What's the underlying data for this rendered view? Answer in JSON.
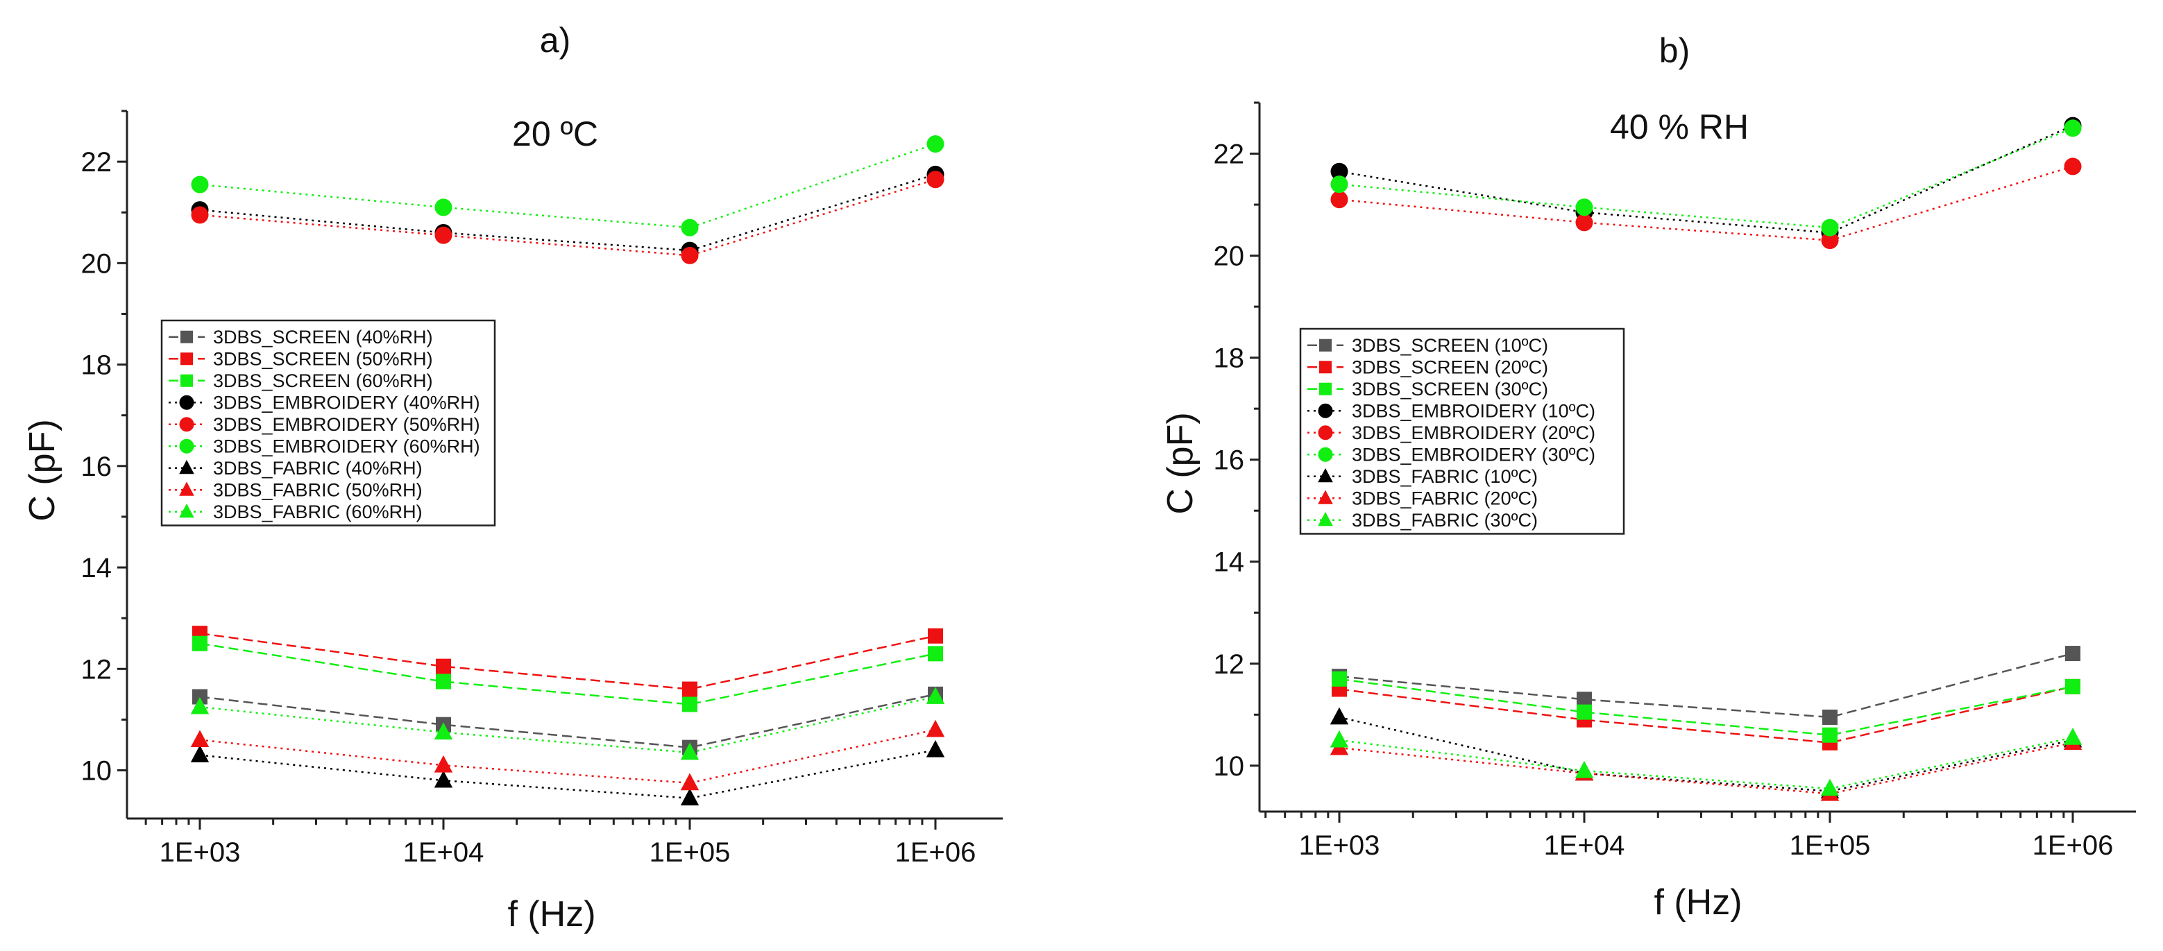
{
  "chart_data": [
    {
      "type": "line",
      "panel_label": "a)",
      "condition": "20 ºC",
      "xlabel": "f (Hz)",
      "ylabel": "C (pF)",
      "x": [
        1000,
        10000,
        100000,
        1000000
      ],
      "x_tick_labels": [
        "1E+03",
        "1E+04",
        "1E+05",
        "1E+06"
      ],
      "x_scale": "log",
      "ylim": [
        9.05,
        23.0
      ],
      "y_ticks": [
        10,
        12,
        14,
        16,
        18,
        20,
        22
      ],
      "legend_position": "center-left",
      "series": [
        {
          "name": "3DBS_SCREEN (40%RH)",
          "color": "#555555",
          "marker": "square",
          "dash": "dash",
          "values": [
            11.45,
            10.9,
            10.45,
            11.5
          ]
        },
        {
          "name": "3DBS_SCREEN (50%RH)",
          "color": "#ee1111",
          "marker": "square",
          "dash": "dash",
          "values": [
            12.7,
            12.05,
            11.6,
            12.65
          ]
        },
        {
          "name": "3DBS_SCREEN (60%RH)",
          "color": "#11ee11",
          "marker": "square",
          "dash": "dash",
          "values": [
            12.5,
            11.75,
            11.3,
            12.3
          ]
        },
        {
          "name": "3DBS_EMBROIDERY (40%RH)",
          "color": "#000000",
          "marker": "circle",
          "dash": "dot",
          "values": [
            21.05,
            20.6,
            20.25,
            21.75
          ]
        },
        {
          "name": "3DBS_EMBROIDERY (50%RH)",
          "color": "#ee1111",
          "marker": "circle",
          "dash": "dot",
          "values": [
            20.95,
            20.55,
            20.15,
            21.65
          ]
        },
        {
          "name": "3DBS_EMBROIDERY (60%RH)",
          "color": "#11ee11",
          "marker": "circle",
          "dash": "dot",
          "values": [
            21.55,
            21.1,
            20.7,
            22.35
          ]
        },
        {
          "name": "3DBS_FABRIC (40%RH)",
          "color": "#000000",
          "marker": "triangle",
          "dash": "dot",
          "values": [
            10.3,
            9.8,
            9.45,
            10.4
          ]
        },
        {
          "name": "3DBS_FABRIC (50%RH)",
          "color": "#ee1111",
          "marker": "triangle",
          "dash": "dot",
          "values": [
            10.6,
            10.1,
            9.75,
            10.8
          ]
        },
        {
          "name": "3DBS_FABRIC (60%RH)",
          "color": "#11ee11",
          "marker": "triangle",
          "dash": "dot",
          "values": [
            11.25,
            10.75,
            10.35,
            11.45
          ]
        }
      ]
    },
    {
      "type": "line",
      "panel_label": "b)",
      "condition": "40 % RH",
      "xlabel": "f (Hz)",
      "ylabel": "C (pF)",
      "x": [
        1000,
        10000,
        100000,
        1000000
      ],
      "x_tick_labels": [
        "1E+03",
        "1E+04",
        "1E+05",
        "1E+06"
      ],
      "x_scale": "log",
      "ylim": [
        9.1,
        23.0
      ],
      "y_ticks": [
        10,
        12,
        14,
        16,
        18,
        20,
        22
      ],
      "legend_position": "center-left",
      "series": [
        {
          "name": "3DBS_SCREEN (10ºC)",
          "color": "#555555",
          "marker": "square",
          "dash": "dash",
          "values": [
            11.75,
            11.3,
            10.95,
            12.2
          ]
        },
        {
          "name": "3DBS_SCREEN (20ºC)",
          "color": "#ee1111",
          "marker": "square",
          "dash": "dash",
          "values": [
            11.5,
            10.9,
            10.45,
            11.55
          ]
        },
        {
          "name": "3DBS_SCREEN (30ºC)",
          "color": "#11ee11",
          "marker": "square",
          "dash": "dash",
          "values": [
            11.7,
            11.05,
            10.6,
            11.55
          ]
        },
        {
          "name": "3DBS_EMBROIDERY (10ºC)",
          "color": "#000000",
          "marker": "circle",
          "dash": "dot",
          "values": [
            21.65,
            20.85,
            20.45,
            22.55
          ]
        },
        {
          "name": "3DBS_EMBROIDERY (20ºC)",
          "color": "#ee1111",
          "marker": "circle",
          "dash": "dot",
          "values": [
            21.1,
            20.65,
            20.3,
            21.75
          ]
        },
        {
          "name": "3DBS_EMBROIDERY (30ºC)",
          "color": "#11ee11",
          "marker": "circle",
          "dash": "dot",
          "values": [
            21.4,
            20.95,
            20.55,
            22.5
          ]
        },
        {
          "name": "3DBS_FABRIC (10ºC)",
          "color": "#000000",
          "marker": "triangle",
          "dash": "dot",
          "values": [
            10.95,
            9.85,
            9.5,
            10.5
          ]
        },
        {
          "name": "3DBS_FABRIC (20ºC)",
          "color": "#ee1111",
          "marker": "triangle",
          "dash": "dot",
          "values": [
            10.35,
            9.85,
            9.45,
            10.45
          ]
        },
        {
          "name": "3DBS_FABRIC (30ºC)",
          "color": "#11ee11",
          "marker": "triangle",
          "dash": "dot",
          "values": [
            10.5,
            9.9,
            9.55,
            10.55
          ]
        }
      ]
    }
  ]
}
